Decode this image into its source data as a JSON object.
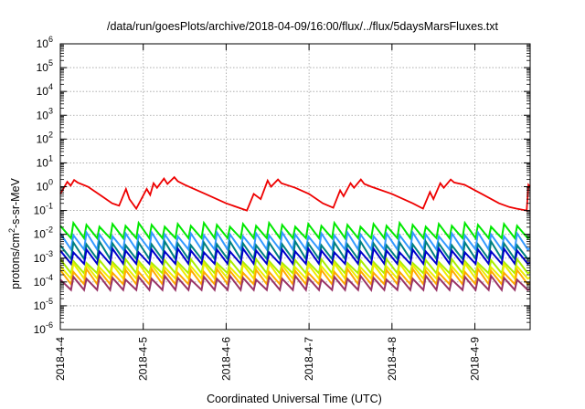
{
  "chart_data": {
    "type": "line",
    "title": "/data/run/goesPlots/archive/2018-04-09/16:00/flux/../flux/5daysMarsFluxes.txt",
    "xlabel": "Coordinated Universal Time (UTC)",
    "ylabel_parts": [
      "protons/cm",
      "2",
      "-s-sr-MeV"
    ],
    "x_range": [
      "2018-04-04T00:00",
      "2018-04-09T16:00"
    ],
    "x_ticks": [
      "2018-4-4",
      "2018-4-5",
      "2018-4-6",
      "2018-4-7",
      "2018-4-8",
      "2018-4-9"
    ],
    "y_scale": "log",
    "y_range": [
      1e-06,
      1000000.0
    ],
    "y_ticks": [
      {
        "base": "10",
        "exp": "-6"
      },
      {
        "base": "10",
        "exp": "-5"
      },
      {
        "base": "10",
        "exp": "-4"
      },
      {
        "base": "10",
        "exp": "-3"
      },
      {
        "base": "10",
        "exp": "-2"
      },
      {
        "base": "10",
        "exp": "-1"
      },
      {
        "base": "10",
        "exp": "0"
      },
      {
        "base": "10",
        "exp": "1"
      },
      {
        "base": "10",
        "exp": "2"
      },
      {
        "base": "10",
        "exp": "3"
      },
      {
        "base": "10",
        "exp": "4"
      },
      {
        "base": "10",
        "exp": "5"
      },
      {
        "base": "10",
        "exp": "6"
      }
    ],
    "grid": true,
    "legend": false,
    "series": [
      {
        "color": "#ee0000",
        "points": [
          [
            "2018-04-04T00:00",
            0.5
          ],
          [
            "2018-04-04T02:00",
            1.6
          ],
          [
            "2018-04-04T03:00",
            1.1
          ],
          [
            "2018-04-04T04:00",
            1.9
          ],
          [
            "2018-04-04T05:00",
            1.5
          ],
          [
            "2018-04-04T08:00",
            1.0
          ],
          [
            "2018-04-04T12:00",
            0.4
          ],
          [
            "2018-04-04T15:00",
            0.2
          ],
          [
            "2018-04-04T17:00",
            0.16
          ],
          [
            "2018-04-04T19:00",
            0.8
          ],
          [
            "2018-04-04T20:00",
            0.3
          ],
          [
            "2018-04-04T22:00",
            0.12
          ],
          [
            "2018-04-05T01:00",
            0.8
          ],
          [
            "2018-04-05T02:00",
            0.45
          ],
          [
            "2018-04-05T03:00",
            1.4
          ],
          [
            "2018-04-05T04:00",
            0.9
          ],
          [
            "2018-04-05T06:00",
            2.2
          ],
          [
            "2018-04-05T07:00",
            1.3
          ],
          [
            "2018-04-05T09:00",
            2.5
          ],
          [
            "2018-04-05T10:00",
            1.7
          ],
          [
            "2018-04-05T12:00",
            1.2
          ],
          [
            "2018-04-05T18:00",
            0.5
          ],
          [
            "2018-04-06T00:00",
            0.2
          ],
          [
            "2018-04-06T06:00",
            0.1
          ],
          [
            "2018-04-06T08:00",
            0.5
          ],
          [
            "2018-04-06T10:00",
            0.3
          ],
          [
            "2018-04-06T12:00",
            1.8
          ],
          [
            "2018-04-06T13:00",
            1.0
          ],
          [
            "2018-04-06T15:00",
            2.0
          ],
          [
            "2018-04-06T16:00",
            1.4
          ],
          [
            "2018-04-06T20:00",
            0.9
          ],
          [
            "2018-04-07T00:00",
            0.5
          ],
          [
            "2018-04-07T04:00",
            0.2
          ],
          [
            "2018-04-07T07:00",
            0.13
          ],
          [
            "2018-04-07T09:00",
            0.7
          ],
          [
            "2018-04-07T10:00",
            0.4
          ],
          [
            "2018-04-07T12:00",
            1.4
          ],
          [
            "2018-04-07T13:00",
            0.9
          ],
          [
            "2018-04-07T15:00",
            2.0
          ],
          [
            "2018-04-07T16:00",
            1.3
          ],
          [
            "2018-04-07T18:00",
            1.0
          ],
          [
            "2018-04-08T00:00",
            0.5
          ],
          [
            "2018-04-08T06:00",
            0.2
          ],
          [
            "2018-04-08T09:00",
            0.12
          ],
          [
            "2018-04-08T11:00",
            0.6
          ],
          [
            "2018-04-08T12:00",
            0.3
          ],
          [
            "2018-04-08T14:00",
            1.4
          ],
          [
            "2018-04-08T15:00",
            0.9
          ],
          [
            "2018-04-08T17:00",
            2.0
          ],
          [
            "2018-04-08T18:00",
            1.5
          ],
          [
            "2018-04-08T21:00",
            1.2
          ],
          [
            "2018-04-09T02:00",
            0.5
          ],
          [
            "2018-04-09T07:00",
            0.2
          ],
          [
            "2018-04-09T10:00",
            0.14
          ],
          [
            "2018-04-09T12:00",
            0.12
          ],
          [
            "2018-04-09T15:00",
            0.1
          ],
          [
            "2018-04-09T15:30",
            1.2
          ],
          [
            "2018-04-09T16:00",
            1.0
          ]
        ]
      },
      {
        "color": "#00e800",
        "min": 0.006,
        "max": 0.03,
        "teeth": 36
      },
      {
        "color": "#3399ff",
        "min": 0.002,
        "max": 0.012,
        "teeth": 36
      },
      {
        "color": "#008080",
        "min": 0.0008,
        "max": 0.005,
        "teeth": 36
      },
      {
        "color": "#0000cc",
        "min": 0.0005,
        "max": 0.0025,
        "teeth": 36
      },
      {
        "color": "#aaee00",
        "min": 0.0002,
        "max": 0.0009,
        "teeth": 36
      },
      {
        "color": "#eeee00",
        "min": 0.00012,
        "max": 0.0006,
        "teeth": 36
      },
      {
        "color": "#ffaa00",
        "min": 7e-05,
        "max": 0.00035,
        "teeth": 36
      },
      {
        "color": "#993366",
        "min": 4e-05,
        "max": 0.00018,
        "teeth": 36
      }
    ]
  }
}
